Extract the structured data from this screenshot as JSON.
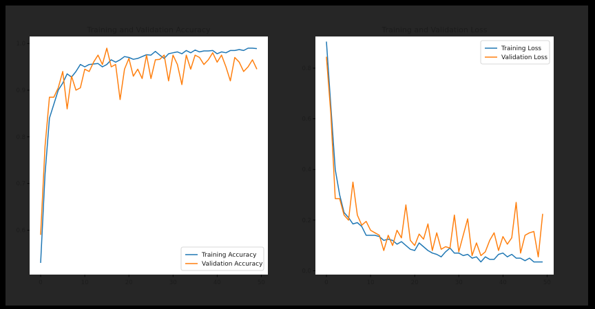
{
  "chart_data": [
    {
      "type": "line",
      "title": "Training and Validation Accuracy",
      "xlabel": "",
      "ylabel": "",
      "xlim": [
        -2.5,
        51.5
      ],
      "ylim": [
        0.505,
        1.015
      ],
      "xticks": [
        0,
        10,
        20,
        30,
        40,
        50
      ],
      "yticks": [
        0.6,
        0.7,
        0.8,
        0.9,
        1.0
      ],
      "ytick_labels": [
        "0.6",
        "0.7",
        "0.8",
        "0.9",
        "1.0"
      ],
      "legend": "lower right",
      "grid": false,
      "x": [
        0,
        1,
        2,
        3,
        4,
        5,
        6,
        7,
        8,
        9,
        10,
        11,
        12,
        13,
        14,
        15,
        16,
        17,
        18,
        19,
        20,
        21,
        22,
        23,
        24,
        25,
        26,
        27,
        28,
        29,
        30,
        31,
        32,
        33,
        34,
        35,
        36,
        37,
        38,
        39,
        40,
        41,
        42,
        43,
        44,
        45,
        46,
        47,
        48,
        49
      ],
      "series": [
        {
          "name": "Training Accuracy",
          "color": "#1f77b4",
          "values": [
            0.53,
            0.72,
            0.84,
            0.87,
            0.9,
            0.915,
            0.935,
            0.928,
            0.94,
            0.955,
            0.95,
            0.955,
            0.956,
            0.957,
            0.95,
            0.955,
            0.965,
            0.96,
            0.965,
            0.972,
            0.97,
            0.966,
            0.968,
            0.972,
            0.976,
            0.975,
            0.983,
            0.975,
            0.968,
            0.978,
            0.98,
            0.982,
            0.978,
            0.985,
            0.98,
            0.986,
            0.982,
            0.984,
            0.984,
            0.985,
            0.978,
            0.982,
            0.98,
            0.985,
            0.985,
            0.987,
            0.985,
            0.99,
            0.99,
            0.989
          ]
        },
        {
          "name": "Validation Accuracy",
          "color": "#ff7f0e",
          "values": [
            0.59,
            0.78,
            0.885,
            0.885,
            0.905,
            0.94,
            0.86,
            0.93,
            0.9,
            0.905,
            0.945,
            0.94,
            0.96,
            0.975,
            0.955,
            0.99,
            0.95,
            0.955,
            0.88,
            0.945,
            0.968,
            0.93,
            0.945,
            0.925,
            0.975,
            0.925,
            0.965,
            0.966,
            0.975,
            0.92,
            0.975,
            0.955,
            0.912,
            0.975,
            0.945,
            0.975,
            0.97,
            0.955,
            0.965,
            0.98,
            0.96,
            0.975,
            0.95,
            0.92,
            0.97,
            0.96,
            0.94,
            0.95,
            0.965,
            0.945
          ]
        }
      ]
    },
    {
      "type": "line",
      "title": "Training and Validation Loss",
      "xlabel": "",
      "ylabel": "",
      "xlim": [
        -2.5,
        51.5
      ],
      "ylim": [
        -0.015,
        0.925
      ],
      "xticks": [
        0,
        10,
        20,
        30,
        40,
        50
      ],
      "yticks": [
        0.0,
        0.2,
        0.4,
        0.6,
        0.8
      ],
      "ytick_labels": [
        "0.0",
        "0.2",
        "0.4",
        "0.6",
        "0.8"
      ],
      "legend": "upper right",
      "grid": false,
      "x": [
        0,
        1,
        2,
        3,
        4,
        5,
        6,
        7,
        8,
        9,
        10,
        11,
        12,
        13,
        14,
        15,
        16,
        17,
        18,
        19,
        20,
        21,
        22,
        23,
        24,
        25,
        26,
        27,
        28,
        29,
        30,
        31,
        32,
        33,
        34,
        35,
        36,
        37,
        38,
        39,
        40,
        41,
        42,
        43,
        44,
        45,
        46,
        47,
        48,
        49
      ],
      "series": [
        {
          "name": "Training Loss",
          "color": "#1f77b4",
          "values": [
            0.905,
            0.65,
            0.4,
            0.3,
            0.23,
            0.21,
            0.185,
            0.19,
            0.175,
            0.14,
            0.14,
            0.14,
            0.135,
            0.12,
            0.125,
            0.12,
            0.105,
            0.115,
            0.1,
            0.085,
            0.08,
            0.11,
            0.095,
            0.08,
            0.07,
            0.065,
            0.055,
            0.075,
            0.09,
            0.07,
            0.07,
            0.06,
            0.065,
            0.05,
            0.055,
            0.035,
            0.055,
            0.045,
            0.045,
            0.065,
            0.07,
            0.055,
            0.065,
            0.05,
            0.05,
            0.04,
            0.05,
            0.035,
            0.035,
            0.035
          ]
        },
        {
          "name": "Validation Loss",
          "color": "#ff7f0e",
          "values": [
            0.845,
            0.62,
            0.285,
            0.285,
            0.22,
            0.2,
            0.35,
            0.22,
            0.18,
            0.195,
            0.16,
            0.15,
            0.14,
            0.08,
            0.14,
            0.1,
            0.16,
            0.13,
            0.26,
            0.12,
            0.1,
            0.145,
            0.125,
            0.185,
            0.08,
            0.15,
            0.085,
            0.095,
            0.09,
            0.22,
            0.075,
            0.14,
            0.205,
            0.06,
            0.11,
            0.06,
            0.075,
            0.12,
            0.15,
            0.08,
            0.135,
            0.105,
            0.13,
            0.27,
            0.07,
            0.14,
            0.15,
            0.155,
            0.055,
            0.225
          ]
        }
      ]
    }
  ]
}
